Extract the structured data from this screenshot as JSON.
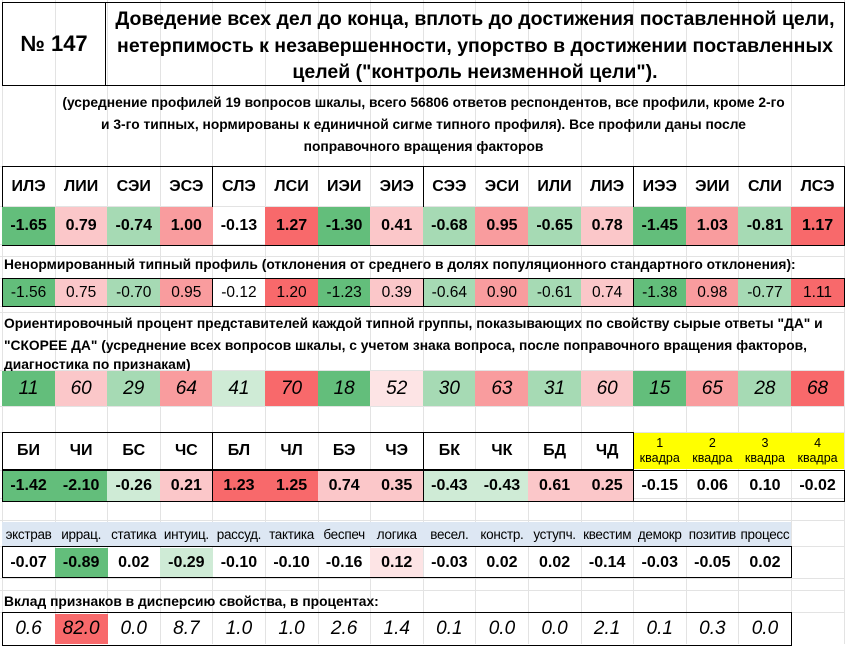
{
  "title": {
    "number": "№ 147",
    "line1": "Доведение всех дел до конца, вплоть до достижения поставленной цели,",
    "line2": "нетерпимость к незавершенности, упорство в достижении поставленных",
    "line3": "целей (\"контроль неизменной цели\")."
  },
  "note": {
    "line1": "(усреднение профилей 19 вопросов шкалы, всего 56806 ответов респондентов, все профили, кроме 2-го",
    "line2": "и 3-го типных, нормированы к единичной сигме типного профиля). Все профили даны после",
    "line3": "поправочного вращения факторов"
  },
  "types": [
    "ИЛЭ",
    "ЛИИ",
    "СЭИ",
    "ЭСЭ",
    "СЛЭ",
    "ЛСИ",
    "ИЭИ",
    "ЭИЭ",
    "СЭЭ",
    "ЭСИ",
    "ИЛИ",
    "ЛИЭ",
    "ИЭЭ",
    "ЭИИ",
    "СЛИ",
    "ЛСЭ"
  ],
  "normalized": [
    "-1.65",
    "0.79",
    "-0.74",
    "1.00",
    "-0.13",
    "1.27",
    "-1.30",
    "0.41",
    "-0.68",
    "0.95",
    "-0.65",
    "0.78",
    "-1.45",
    "1.03",
    "-0.81",
    "1.17"
  ],
  "raw_label": "Ненормированный типный профиль (отклонения от среднего  в долях популяционного стандартного отклонения):",
  "raw": [
    "-1.56",
    "0.75",
    "-0.70",
    "0.95",
    "-0.12",
    "1.20",
    "-1.23",
    "0.39",
    "-0.64",
    "0.90",
    "-0.61",
    "0.74",
    "-1.38",
    "0.98",
    "-0.77",
    "1.11"
  ],
  "percent_label": {
    "line1": "Ориентировочный процент представителей каждой типной группы, показывающих по свойству сырые ответы \"ДА\" и",
    "line2": "\"СКОРЕЕ ДА\" (усреднение всех вопросов шкалы, с учетом знака вопроса, после поправочного вращения факторов,",
    "line3": "диагностика по признакам)"
  },
  "percents": [
    "11",
    "60",
    "29",
    "64",
    "41",
    "70",
    "18",
    "52",
    "30",
    "63",
    "31",
    "60",
    "15",
    "65",
    "28",
    "68"
  ],
  "groups": [
    "БИ",
    "ЧИ",
    "БС",
    "ЧС",
    "БЛ",
    "ЧЛ",
    "БЭ",
    "ЧЭ",
    "БК",
    "ЧК",
    "БД",
    "ЧД"
  ],
  "quadra_labels": [
    {
      "n": "1",
      "w": "квадра"
    },
    {
      "n": "2",
      "w": "квадра"
    },
    {
      "n": "3",
      "w": "квадра"
    },
    {
      "n": "4",
      "w": "квадра"
    }
  ],
  "group_values": [
    "-1.42",
    "-2.10",
    "-0.26",
    "0.21",
    "1.23",
    "1.25",
    "0.74",
    "0.35",
    "-0.43",
    "-0.43",
    "0.61",
    "0.25",
    "-0.15",
    "0.06",
    "0.10",
    "-0.02"
  ],
  "traits": [
    "экстрав",
    "иррац.",
    "статика",
    "интуиц.",
    "рассуд.",
    "тактика",
    "беспеч",
    "логика",
    "весел.",
    "констр.",
    "уступч.",
    "квестим",
    "демокр",
    "позитив",
    "процесс"
  ],
  "trait_values": [
    "-0.07",
    "-0.89",
    "0.02",
    "-0.29",
    "-0.10",
    "-0.10",
    "-0.16",
    "0.12",
    "-0.03",
    "0.02",
    "0.02",
    "-0.14",
    "-0.03",
    "-0.05",
    "0.02"
  ],
  "variance_label": "Вклад признаков в дисперсию свойства, в процентах:",
  "variance": [
    "0.6",
    "82.0",
    "0.0",
    "8.7",
    "1.0",
    "1.0",
    "2.6",
    "1.4",
    "0.1",
    "0.0",
    "0.0",
    "2.1",
    "0.1",
    "0.3",
    "0.0"
  ],
  "colors": {
    "green_strong": "#63be7b",
    "green_mid": "#a6dab4",
    "green_light": "#cfebd6",
    "red_strong": "#f8696b",
    "red_mid": "#f99c9e",
    "red_light": "#fbc7c9",
    "quadra_yellow": "#ffff00"
  }
}
